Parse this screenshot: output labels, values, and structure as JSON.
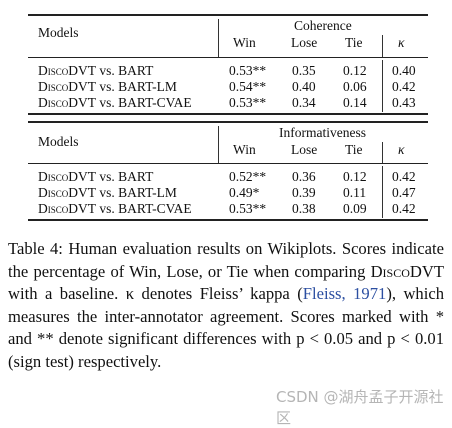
{
  "tables": [
    {
      "models_header": "Models",
      "group_header": "Coherence",
      "cols": [
        "Win",
        "Lose",
        "Tie",
        "κ"
      ],
      "rows": [
        {
          "method": "DiscoDVT",
          "vs": "vs. BART",
          "win": "0.53**",
          "lose": "0.35",
          "tie": "0.12",
          "kappa": "0.40"
        },
        {
          "method": "DiscoDVT",
          "vs": "vs. BART-LM",
          "win": "0.54**",
          "lose": "0.40",
          "tie": "0.06",
          "kappa": "0.42"
        },
        {
          "method": "DiscoDVT",
          "vs": "vs. BART-CVAE",
          "win": "0.53**",
          "lose": "0.34",
          "tie": "0.14",
          "kappa": "0.43"
        }
      ]
    },
    {
      "models_header": "Models",
      "group_header": "Informativeness",
      "cols": [
        "Win",
        "Lose",
        "Tie",
        "κ"
      ],
      "rows": [
        {
          "method": "DiscoDVT",
          "vs": "vs. BART",
          "win": "0.52**",
          "lose": "0.36",
          "tie": "0.12",
          "kappa": "0.42"
        },
        {
          "method": "DiscoDVT",
          "vs": "vs. BART-LM",
          "win": "0.49*",
          "lose": "0.39",
          "tie": "0.11",
          "kappa": "0.47"
        },
        {
          "method": "DiscoDVT",
          "vs": "vs. BART-CVAE",
          "win": "0.53**",
          "lose": "0.38",
          "tie": "0.09",
          "kappa": "0.42"
        }
      ]
    }
  ],
  "caption": {
    "p1": "Table 4:  Human evaluation results on Wikiplots. Scores indicate the percentage of Win, Lose, or Tie when comparing ",
    "method": "DiscoDVT",
    "p2": " with a baseline.  κ denotes Fleiss’ kappa (",
    "cite": "Fleiss, 1971",
    "p3": "), which measures the inter-annotator agreement.  Scores marked with * and ** denote significant differences with p < 0.05 and p < 0.01 (sign test) respectively."
  },
  "watermark": "CSDN @湖舟孟子开源社区"
}
